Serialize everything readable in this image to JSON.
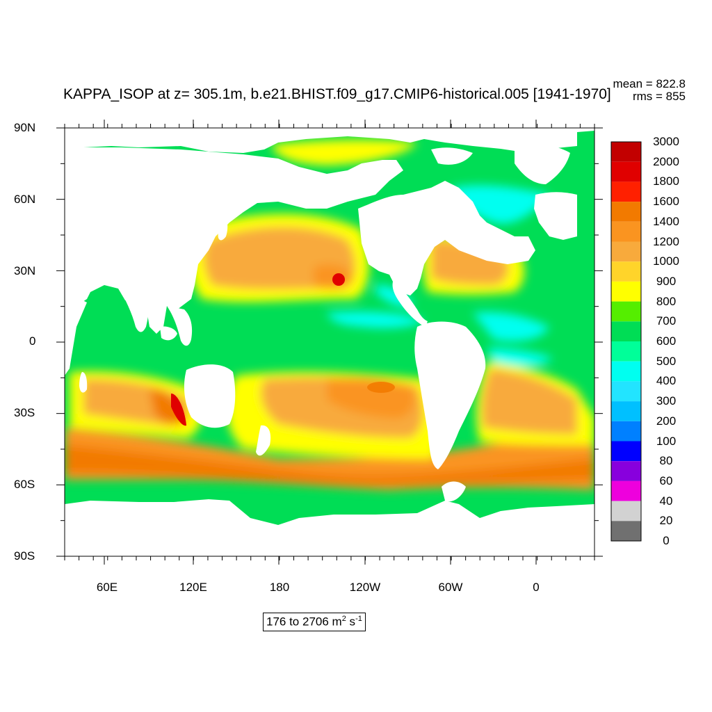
{
  "title": "KAPPA_ISOP at z= 305.1m, b.e21.BHIST.f09_g17.CMIP6-historical.005 [1941-1970]",
  "stats": {
    "mean": "mean = 822.8",
    "rms": "rms = 855"
  },
  "range": {
    "text": "176 to 2706 m",
    "unit_sup1": "2",
    "unit_mid": " s",
    "unit_sup2": "-1"
  },
  "lat_labels": [
    "90N",
    "60N",
    "30N",
    "0",
    "30S",
    "60S",
    "90S"
  ],
  "lon_labels": [
    "60E",
    "120E",
    "180",
    "120W",
    "60W",
    "0"
  ],
  "colorbar": {
    "labels": [
      "3000",
      "2000",
      "1800",
      "1600",
      "1400",
      "1200",
      "1000",
      "900",
      "800",
      "700",
      "600",
      "500",
      "400",
      "300",
      "200",
      "100",
      "80",
      "60",
      "40",
      "20",
      "0"
    ],
    "colors": [
      "#c20000",
      "#e00000",
      "#ff2000",
      "#f27a00",
      "#fa9420",
      "#f8aa3c",
      "#ffd42a",
      "#ffff00",
      "#55ee00",
      "#00dd55",
      "#00ff99",
      "#00fff0",
      "#22e4ff",
      "#00c0ff",
      "#0080ff",
      "#0000ff",
      "#8800dd",
      "#ee00dd",
      "#d2d2d2",
      "#707070"
    ]
  },
  "legend_colors": {
    "land": "#ffffff",
    "ocean_base": "#00dd55"
  }
}
